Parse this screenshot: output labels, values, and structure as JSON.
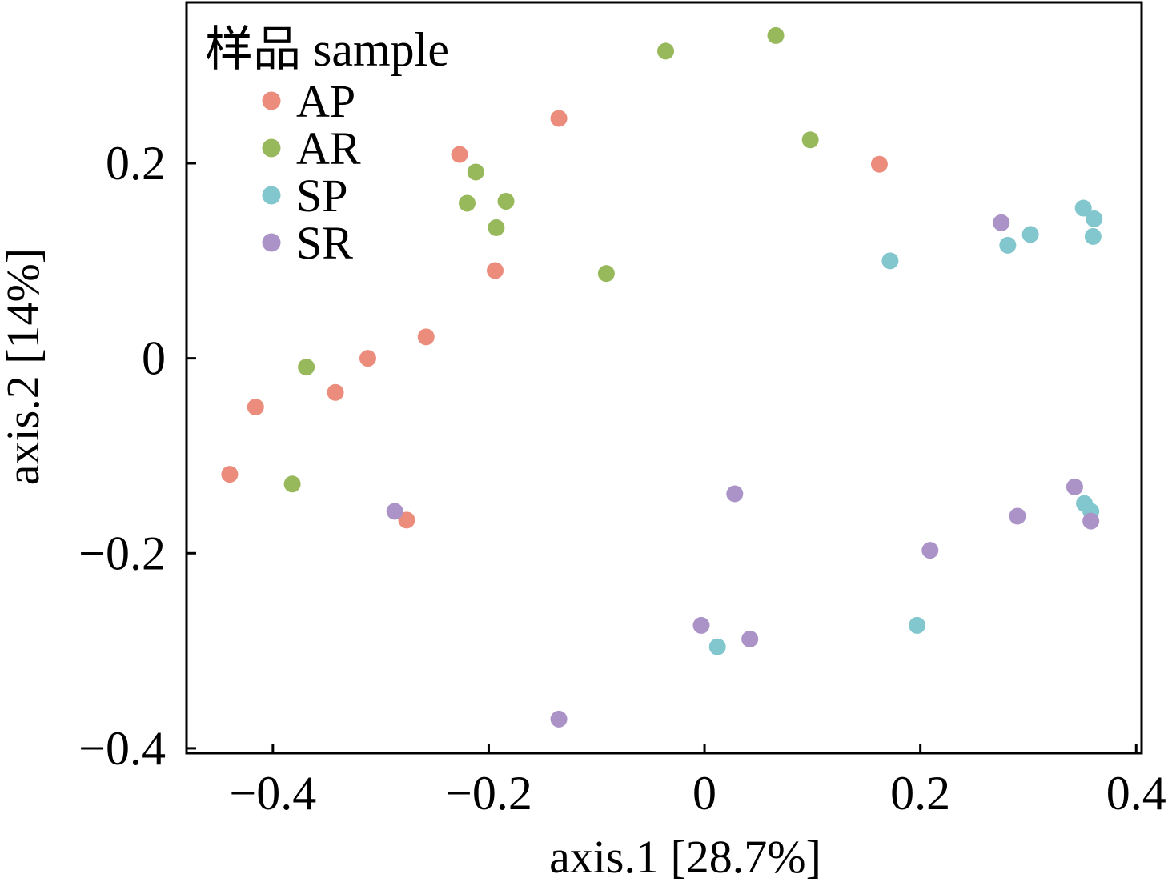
{
  "chart_data": {
    "type": "scatter",
    "title": "",
    "xlabel": "axis.1 [28.7%]",
    "ylabel": "axis.2 [14%]",
    "xlim": [
      -0.48,
      0.405
    ],
    "ylim": [
      -0.405,
      0.365
    ],
    "xticks": [
      {
        "value": -0.4,
        "label": "−0.4"
      },
      {
        "value": -0.2,
        "label": "−0.2"
      },
      {
        "value": 0,
        "label": "0"
      },
      {
        "value": 0.2,
        "label": "0.2"
      },
      {
        "value": 0.4,
        "label": "0.4"
      }
    ],
    "yticks": [
      {
        "value": 0.2,
        "label": "0.2"
      },
      {
        "value": 0,
        "label": "0"
      },
      {
        "value": -0.2,
        "label": "−0.2"
      },
      {
        "value": -0.4,
        "label": "−0.4"
      }
    ],
    "grid": false,
    "legend": {
      "title": "样品 sample",
      "position": "top-left"
    },
    "series": [
      {
        "name": "AP",
        "color": "#ec8c7d",
        "points": [
          [
            -0.135,
            0.246
          ],
          [
            -0.227,
            0.209
          ],
          [
            0.162,
            0.199
          ],
          [
            -0.194,
            0.09
          ],
          [
            -0.258,
            0.022
          ],
          [
            -0.312,
            0.0
          ],
          [
            -0.342,
            -0.035
          ],
          [
            -0.416,
            -0.05
          ],
          [
            -0.44,
            -0.119
          ],
          [
            -0.276,
            -0.166
          ]
        ]
      },
      {
        "name": "AR",
        "color": "#97b95b",
        "points": [
          [
            0.066,
            0.331
          ],
          [
            -0.036,
            0.315
          ],
          [
            0.098,
            0.224
          ],
          [
            -0.212,
            0.191
          ],
          [
            -0.184,
            0.161
          ],
          [
            -0.22,
            0.159
          ],
          [
            -0.193,
            0.134
          ],
          [
            -0.091,
            0.087
          ],
          [
            -0.369,
            -0.009
          ],
          [
            -0.382,
            -0.129
          ]
        ]
      },
      {
        "name": "SP",
        "color": "#82c7ce",
        "points": [
          [
            0.351,
            0.154
          ],
          [
            0.361,
            0.143
          ],
          [
            0.302,
            0.127
          ],
          [
            0.36,
            0.125
          ],
          [
            0.281,
            0.116
          ],
          [
            0.172,
            0.1
          ],
          [
            0.352,
            -0.149
          ],
          [
            0.358,
            -0.157
          ],
          [
            0.197,
            -0.274
          ],
          [
            0.012,
            -0.296
          ]
        ]
      },
      {
        "name": "SR",
        "color": "#ab93c7",
        "points": [
          [
            0.275,
            0.139
          ],
          [
            -0.287,
            -0.157
          ],
          [
            0.028,
            -0.139
          ],
          [
            0.343,
            -0.132
          ],
          [
            0.29,
            -0.162
          ],
          [
            0.358,
            -0.167
          ],
          [
            0.209,
            -0.197
          ],
          [
            -0.003,
            -0.274
          ],
          [
            0.042,
            -0.288
          ],
          [
            -0.135,
            -0.37
          ]
        ]
      }
    ]
  }
}
